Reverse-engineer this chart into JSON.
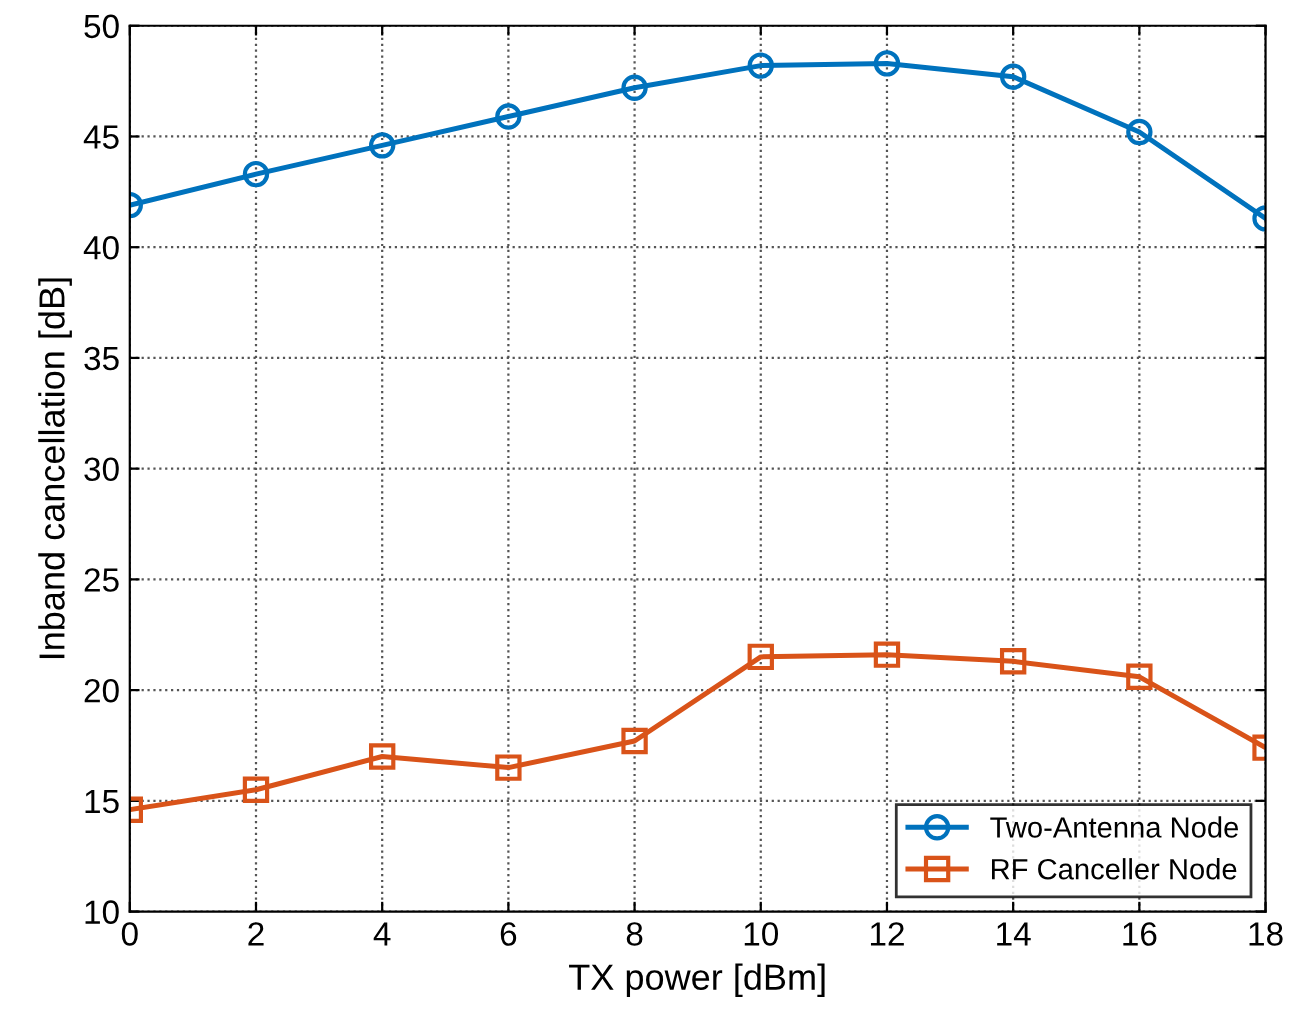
{
  "chart_data": {
    "type": "line",
    "xlabel": "TX power [dBm]",
    "ylabel": "Inband cancellation [dB]",
    "x": [
      0,
      2,
      4,
      6,
      8,
      10,
      12,
      14,
      16,
      18
    ],
    "series": [
      {
        "name": "Two-Antenna Node",
        "color": "#0072bd",
        "marker": "circle",
        "values": [
          41.9,
          43.3,
          44.6,
          45.9,
          47.2,
          48.2,
          48.3,
          47.7,
          45.2,
          41.3
        ]
      },
      {
        "name": "RF Canceller Node",
        "color": "#d95319",
        "marker": "square",
        "values": [
          14.6,
          15.5,
          17.0,
          16.5,
          17.7,
          21.5,
          21.6,
          21.3,
          20.6,
          17.4
        ]
      }
    ],
    "xlim": [
      0,
      18
    ],
    "xticks": [
      0,
      2,
      4,
      6,
      8,
      10,
      12,
      14,
      16,
      18
    ],
    "ylim": [
      10,
      50
    ],
    "yticks": [
      10,
      15,
      20,
      25,
      30,
      35,
      40,
      45,
      50
    ],
    "grid": true,
    "legend": "bottom right",
    "line_style": "solid"
  }
}
